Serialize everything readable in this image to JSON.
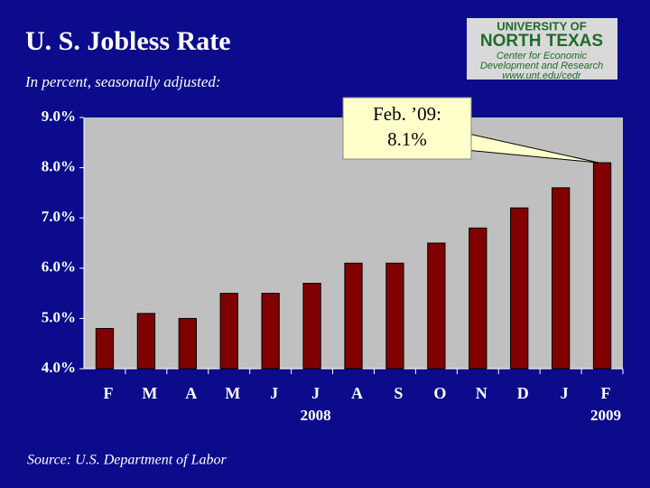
{
  "chart_data": {
    "type": "bar",
    "title": "U. S. Jobless Rate",
    "subtitle": "In percent, seasonally adjusted:",
    "source": "Source:  U.S. Department of Labor",
    "logo": [
      "UNIVERSITY OF",
      "NORTH TEXAS",
      "Center for Economic",
      "Development and Research",
      "www.unt.edu/cedr"
    ],
    "annotation": [
      "Feb. ’09:",
      "8.1%"
    ],
    "categories": [
      "F",
      "M",
      "A",
      "M",
      "J",
      "J",
      "A",
      "S",
      "O",
      "N",
      "D",
      "J",
      "F"
    ],
    "category_years": [
      null,
      null,
      null,
      null,
      null,
      "2008",
      null,
      null,
      null,
      null,
      null,
      null,
      "2009"
    ],
    "values": [
      4.8,
      5.1,
      5.0,
      5.5,
      5.5,
      5.7,
      6.1,
      6.1,
      6.5,
      6.8,
      7.2,
      7.6,
      8.1
    ],
    "color": "#800000",
    "ylim": [
      4,
      9
    ],
    "yticks": [
      {
        "value": 4,
        "label": "4.0%"
      },
      {
        "value": 5,
        "label": "5.0%"
      },
      {
        "value": 6,
        "label": "6.0%"
      },
      {
        "value": 7,
        "label": "7.0%"
      },
      {
        "value": 8,
        "label": "8.0%"
      },
      {
        "value": 9,
        "label": "9.0%"
      }
    ],
    "grid": false
  }
}
